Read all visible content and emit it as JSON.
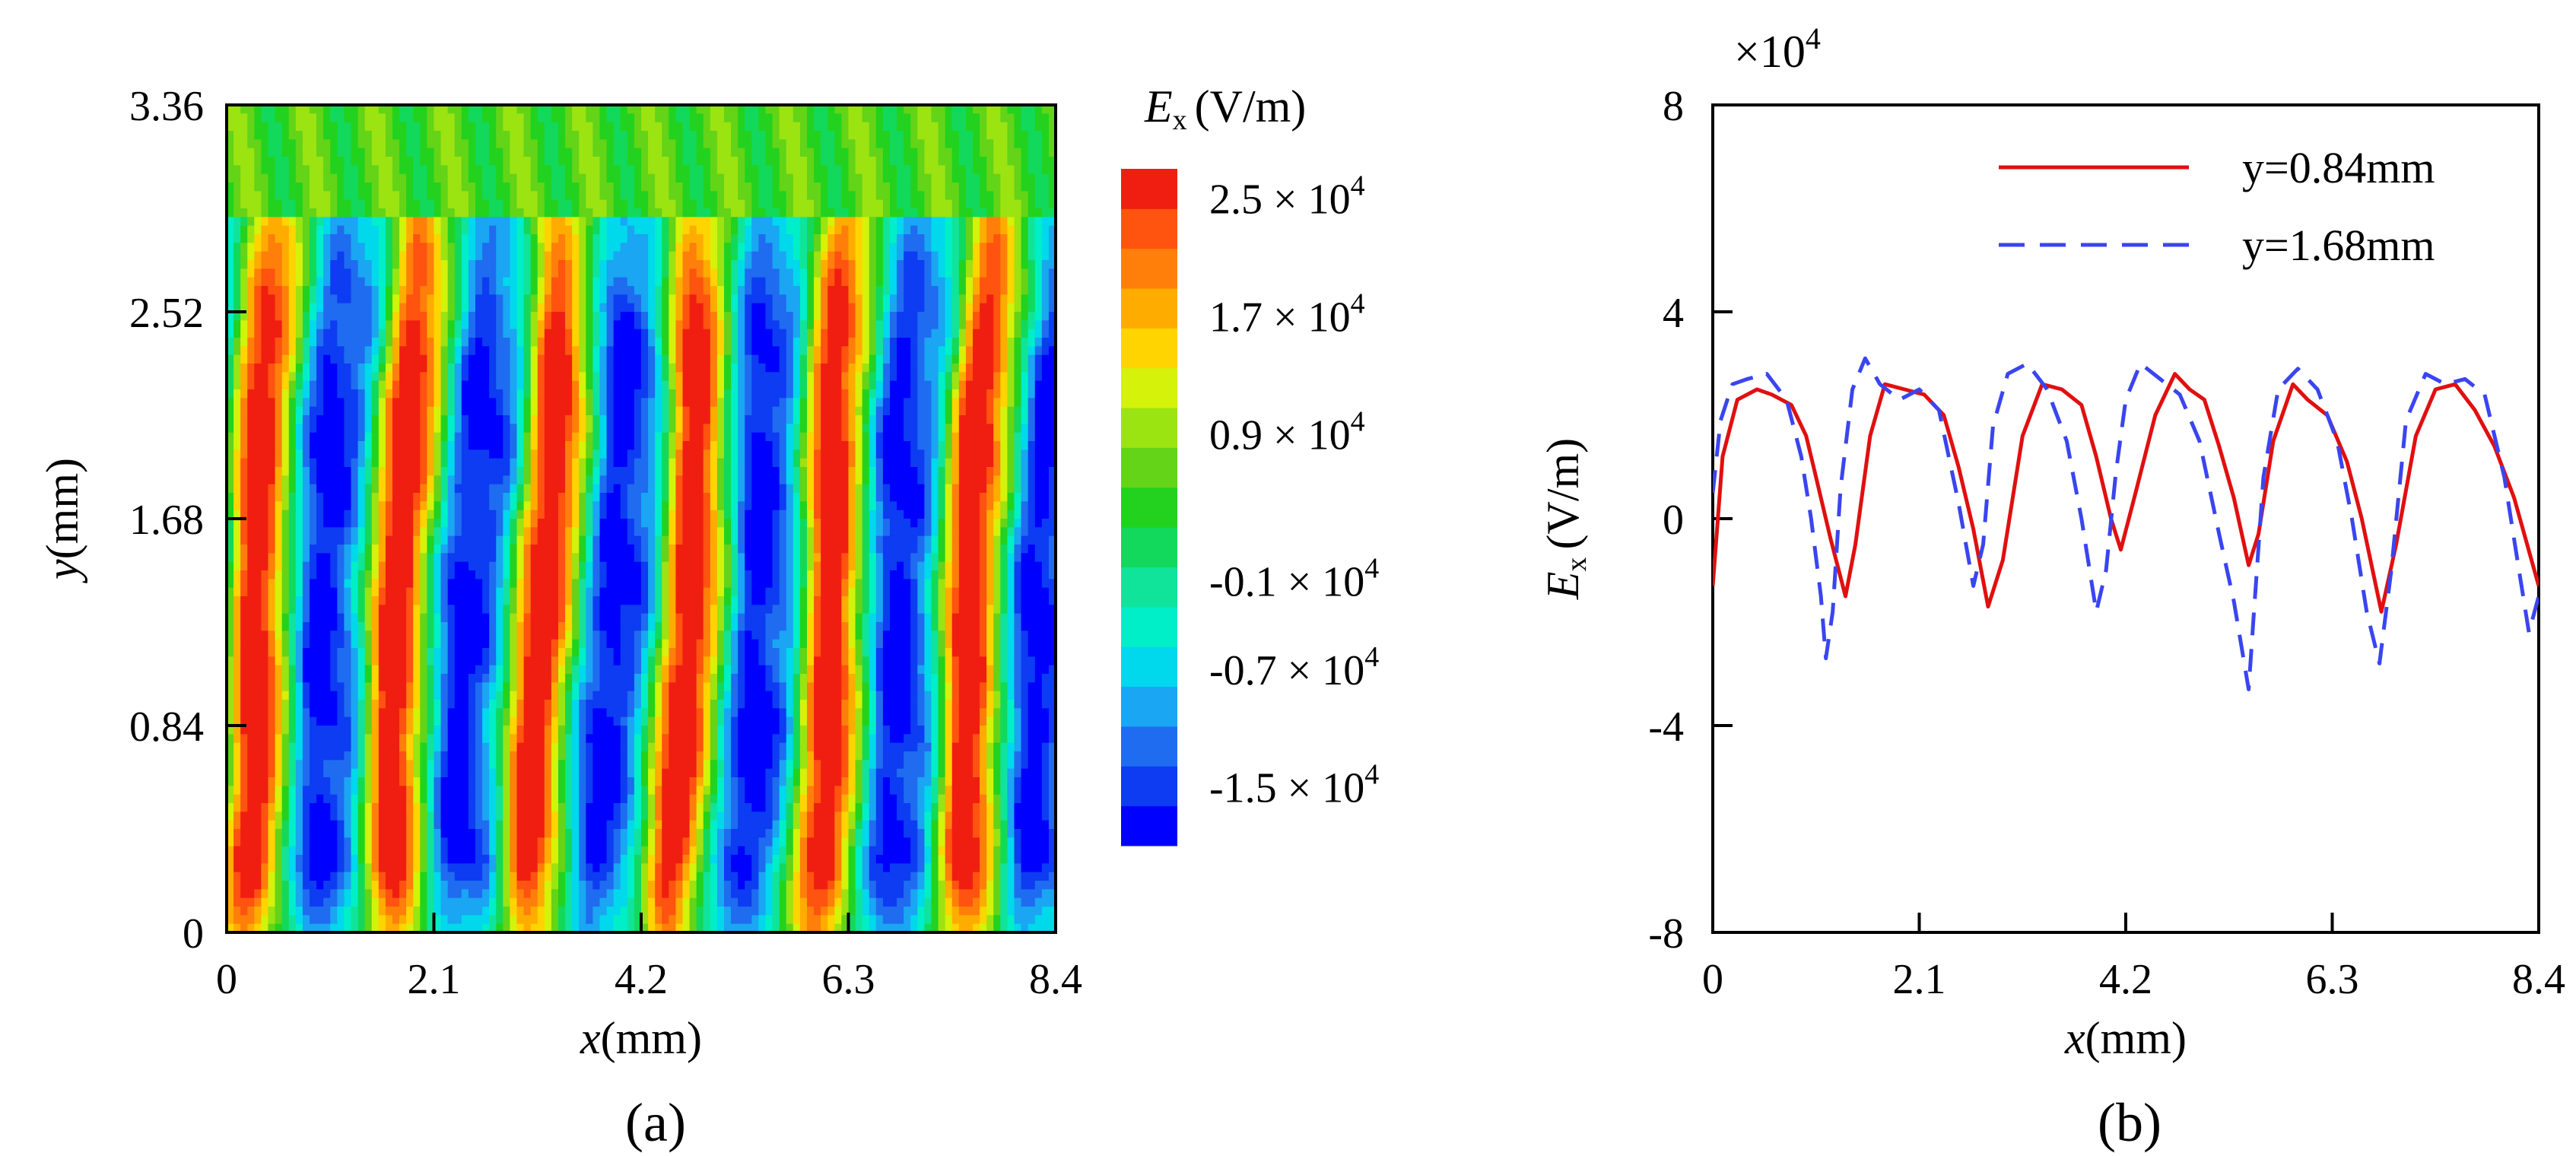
{
  "chart_data": [
    {
      "type": "heatmap",
      "panel_label": "(a)",
      "title": "",
      "xlabel_var": "x",
      "xlabel_unit": "(mm)",
      "ylabel_var": "y",
      "ylabel_unit": "(mm)",
      "xlim": [
        0,
        8.4
      ],
      "ylim": [
        0,
        3.36
      ],
      "xticks": [
        0,
        2.1,
        4.2,
        6.3,
        8.4
      ],
      "xtick_labels": [
        "0",
        "2.1",
        "4.2",
        "6.3",
        "8.4"
      ],
      "yticks": [
        0,
        0.84,
        1.68,
        2.52,
        3.36
      ],
      "ytick_labels": [
        "0",
        "0.84",
        "1.68",
        "2.52",
        "3.36"
      ],
      "field": "E_x contour: alternating positive (red) and negative (blue) stripes along x, period about 1.45 mm, slightly tilted, fading to ~0 near the top edge",
      "stripe_period_mm": 1.45,
      "colorbar": {
        "title_var": "E",
        "title_sub": "x",
        "title_unit": "(V/m)",
        "range": [
          -1.9,
          2.7
        ],
        "ticks": [
          {
            "value": 2.5,
            "label": "2.5 × 10",
            "exp": "4"
          },
          {
            "value": 1.7,
            "label": "1.7 × 10",
            "exp": "4"
          },
          {
            "value": 0.9,
            "label": "0.9 × 10",
            "exp": "4"
          },
          {
            "value": -0.1,
            "label": "-0.1 × 10",
            "exp": "4"
          },
          {
            "value": -0.7,
            "label": "-0.7 × 10",
            "exp": "4"
          },
          {
            "value": -1.5,
            "label": "-1.5 × 10",
            "exp": "4"
          }
        ],
        "colors": [
          "#0000ff",
          "#0d3cf2",
          "#1f6cf0",
          "#1aa6f2",
          "#00d8ec",
          "#00efc8",
          "#10e49a",
          "#12d95c",
          "#22d21e",
          "#63d417",
          "#9ce312",
          "#d4f20a",
          "#ffd400",
          "#ffac00",
          "#ff7f0a",
          "#ff5310",
          "#f01e10"
        ]
      }
    },
    {
      "type": "line",
      "panel_label": "(b)",
      "title": "",
      "xlabel_var": "x",
      "xlabel_unit": "(mm)",
      "ylabel_var": "E",
      "ylabel_sub": "x",
      "ylabel_unit": "(V/m)",
      "exponent_base": "×10",
      "exponent_power": "4",
      "xlim": [
        0,
        8.4
      ],
      "ylim": [
        -8,
        8
      ],
      "xticks": [
        0,
        2.1,
        4.2,
        6.3,
        8.4
      ],
      "xtick_labels": [
        "0",
        "2.1",
        "4.2",
        "6.3",
        "8.4"
      ],
      "yticks": [
        -8,
        -4,
        0,
        4,
        8
      ],
      "ytick_labels": [
        "-8",
        "-4",
        "0",
        "4",
        "8"
      ],
      "legend_position": "top-right",
      "series": [
        {
          "name": "y=0.84mm",
          "color": "#e01010",
          "dash": "solid",
          "x": [
            0,
            0.1,
            0.25,
            0.45,
            0.6,
            0.8,
            0.95,
            1.05,
            1.2,
            1.35,
            1.45,
            1.6,
            1.75,
            1.95,
            2.15,
            2.35,
            2.5,
            2.65,
            2.8,
            2.95,
            3.15,
            3.35,
            3.55,
            3.75,
            3.9,
            4.05,
            4.15,
            4.3,
            4.5,
            4.7,
            4.85,
            5.0,
            5.15,
            5.3,
            5.45,
            5.55,
            5.7,
            5.9,
            6.05,
            6.25,
            6.45,
            6.6,
            6.8,
            6.95,
            7.15,
            7.35,
            7.55,
            7.75,
            7.95,
            8.15,
            8.4
          ],
          "values": [
            -1.3,
            1.2,
            2.3,
            2.5,
            2.4,
            2.2,
            1.6,
            0.8,
            -0.4,
            -1.5,
            -0.5,
            1.6,
            2.6,
            2.5,
            2.4,
            2.0,
            1.0,
            -0.2,
            -1.7,
            -0.8,
            1.6,
            2.6,
            2.5,
            2.2,
            1.2,
            0.0,
            -0.6,
            0.5,
            2.0,
            2.8,
            2.5,
            2.3,
            1.4,
            0.4,
            -0.9,
            -0.3,
            1.5,
            2.6,
            2.3,
            2.0,
            1.1,
            0.0,
            -1.8,
            -0.5,
            1.6,
            2.5,
            2.6,
            2.1,
            1.4,
            0.4,
            -1.3
          ]
        },
        {
          "name": "y=1.68mm",
          "color": "#3a45f0",
          "dash": "dashed",
          "x": [
            0,
            0.08,
            0.2,
            0.35,
            0.55,
            0.75,
            0.9,
            1.0,
            1.1,
            1.15,
            1.22,
            1.3,
            1.42,
            1.55,
            1.7,
            1.9,
            2.1,
            2.3,
            2.5,
            2.65,
            2.75,
            2.85,
            3.0,
            3.2,
            3.4,
            3.6,
            3.75,
            3.9,
            4.0,
            4.1,
            4.2,
            4.35,
            4.55,
            4.75,
            4.95,
            5.15,
            5.3,
            5.45,
            5.5,
            5.6,
            5.75,
            5.95,
            6.15,
            6.35,
            6.5,
            6.65,
            6.78,
            6.9,
            7.05,
            7.25,
            7.45,
            7.65,
            7.85,
            8.05,
            8.2,
            8.3,
            8.4
          ],
          "values": [
            0.5,
            1.9,
            2.6,
            2.7,
            2.8,
            2.3,
            1.2,
            0.0,
            -1.5,
            -2.7,
            -1.8,
            0.6,
            2.5,
            3.1,
            2.6,
            2.3,
            2.5,
            2.1,
            0.3,
            -1.3,
            -0.5,
            1.8,
            2.8,
            3.0,
            2.5,
            1.5,
            0.0,
            -1.8,
            -1.0,
            0.9,
            2.3,
            3.0,
            2.7,
            2.4,
            1.5,
            -0.3,
            -1.6,
            -3.3,
            -1.9,
            0.8,
            2.5,
            2.9,
            2.5,
            1.5,
            0.0,
            -1.8,
            -2.8,
            -1.0,
            1.9,
            2.8,
            2.6,
            2.7,
            2.4,
            0.8,
            -1.0,
            -2.2,
            -1.5
          ]
        }
      ]
    }
  ]
}
